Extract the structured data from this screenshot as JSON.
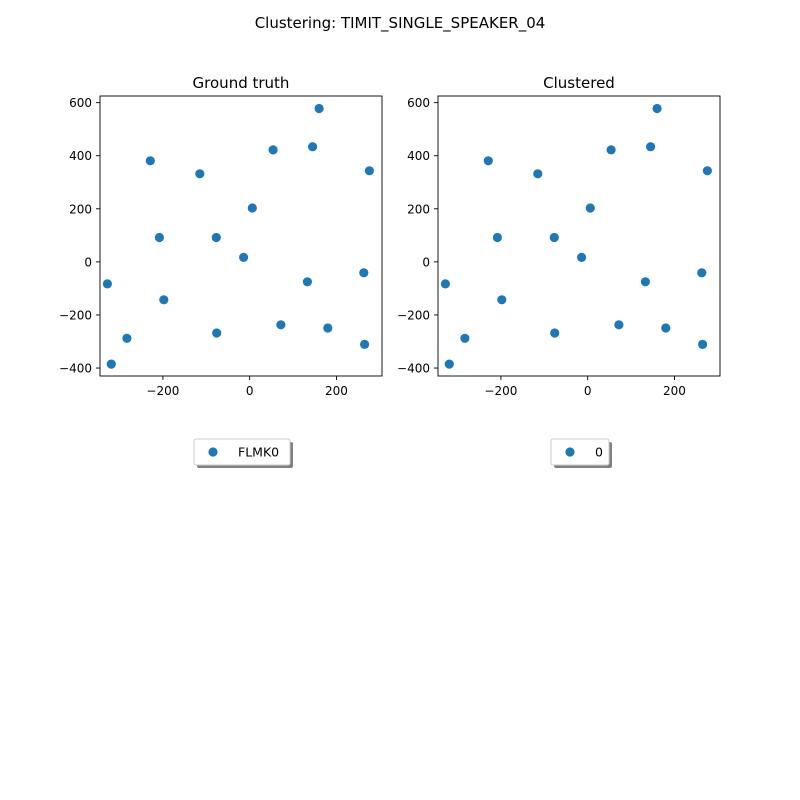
{
  "figure": {
    "title": "Clustering: TIMIT_SINGLE_SPEAKER_04"
  },
  "chart_data": [
    {
      "type": "scatter",
      "title": "Ground truth",
      "xlabel": "",
      "ylabel": "",
      "xlim": [
        -345,
        305
      ],
      "ylim": [
        -430,
        625
      ],
      "xticks": [
        -200,
        0,
        200
      ],
      "yticks": [
        -400,
        -200,
        0,
        200,
        400,
        600
      ],
      "xtick_labels": [
        "−200",
        "0",
        "200"
      ],
      "ytick_labels": [
        "−400",
        "−200",
        "0",
        "200",
        "400",
        "600"
      ],
      "grid": false,
      "legend": {
        "placement": "below",
        "entries": [
          "FLMK0"
        ]
      },
      "series": [
        {
          "name": "FLMK0",
          "color": "#1f77b4",
          "points": [
            [
              160,
              578
            ],
            [
              145,
              434
            ],
            [
              54,
              422
            ],
            [
              -229,
              381
            ],
            [
              -115,
              332
            ],
            [
              276,
              343
            ],
            [
              6,
              203
            ],
            [
              -208,
              92
            ],
            [
              -77,
              92
            ],
            [
              -14,
              17
            ],
            [
              263,
              -41
            ],
            [
              133,
              -75
            ],
            [
              -328,
              -83
            ],
            [
              -198,
              -143
            ],
            [
              72,
              -237
            ],
            [
              180,
              -249
            ],
            [
              -76,
              -268
            ],
            [
              -283,
              -288
            ],
            [
              265,
              -311
            ],
            [
              -319,
              -385
            ]
          ]
        }
      ]
    },
    {
      "type": "scatter",
      "title": "Clustered",
      "xlabel": "",
      "ylabel": "",
      "xlim": [
        -345,
        305
      ],
      "ylim": [
        -430,
        625
      ],
      "xticks": [
        -200,
        0,
        200
      ],
      "yticks": [
        -400,
        -200,
        0,
        200,
        400,
        600
      ],
      "xtick_labels": [
        "−200",
        "0",
        "200"
      ],
      "ytick_labels": [
        "−400",
        "−200",
        "0",
        "200",
        "400",
        "600"
      ],
      "grid": false,
      "legend": {
        "placement": "below",
        "entries": [
          "0"
        ]
      },
      "series": [
        {
          "name": "0",
          "color": "#1f77b4",
          "points": [
            [
              160,
              578
            ],
            [
              145,
              434
            ],
            [
              54,
              422
            ],
            [
              -229,
              381
            ],
            [
              -115,
              332
            ],
            [
              276,
              343
            ],
            [
              6,
              203
            ],
            [
              -208,
              92
            ],
            [
              -77,
              92
            ],
            [
              -14,
              17
            ],
            [
              263,
              -41
            ],
            [
              133,
              -75
            ],
            [
              -328,
              -83
            ],
            [
              -198,
              -143
            ],
            [
              72,
              -237
            ],
            [
              180,
              -249
            ],
            [
              -76,
              -268
            ],
            [
              -283,
              -288
            ],
            [
              265,
              -311
            ],
            [
              -319,
              -385
            ]
          ]
        }
      ]
    }
  ]
}
